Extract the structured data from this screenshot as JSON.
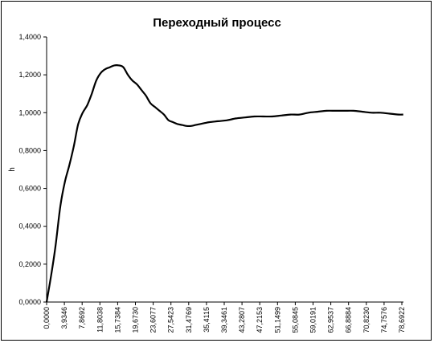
{
  "chart_data": {
    "type": "line",
    "title": "Переходный процесс",
    "xlabel": "",
    "ylabel": "h",
    "ylim": [
      0,
      1.4
    ],
    "y_ticks": [
      "0,0000",
      "0,2000",
      "0,4000",
      "0,6000",
      "0,8000",
      "1,0000",
      "1,2000",
      "1,4000"
    ],
    "y_tick_values": [
      0,
      0.2,
      0.4,
      0.6,
      0.8,
      1.0,
      1.2,
      1.4
    ],
    "x_ticks": [
      "0,0000",
      "3,9346",
      "7,8692",
      "11,8038",
      "15,7384",
      "19,6730",
      "23,6077",
      "27,5423",
      "31,4769",
      "35,4115",
      "39,3461",
      "43,2807",
      "47,2153",
      "51,1499",
      "55,0845",
      "59,0191",
      "62,9537",
      "66,8884",
      "70,8230",
      "74,7576",
      "78,6922"
    ],
    "x_tick_values": [
      0,
      3.9346,
      7.8692,
      11.8038,
      15.7384,
      19.673,
      23.6077,
      27.5423,
      31.4769,
      35.4115,
      39.3461,
      43.2807,
      47.2153,
      51.1499,
      55.0845,
      59.0191,
      62.9537,
      66.8884,
      70.823,
      74.7576,
      78.6922
    ],
    "xlim": [
      0,
      78.6922
    ],
    "grid": false,
    "legend": "none",
    "series": [
      {
        "color": "#000000",
        "x": [
          0,
          1,
          2,
          3,
          4,
          5,
          6,
          7,
          8,
          9,
          10,
          11,
          12,
          13,
          14,
          15,
          16,
          17,
          18,
          19,
          20,
          21,
          22,
          23,
          24,
          25,
          26,
          27,
          28,
          29,
          30,
          31,
          32,
          33,
          34,
          35,
          36,
          38,
          40,
          42,
          44,
          46,
          48,
          50,
          52,
          54,
          56,
          58,
          60,
          62,
          64,
          66,
          68,
          70,
          72,
          74,
          76,
          78,
          79
        ],
        "y": [
          0.0,
          0.14,
          0.3,
          0.5,
          0.63,
          0.72,
          0.82,
          0.94,
          1.0,
          1.04,
          1.1,
          1.17,
          1.21,
          1.23,
          1.24,
          1.25,
          1.25,
          1.24,
          1.2,
          1.17,
          1.15,
          1.12,
          1.09,
          1.05,
          1.03,
          1.01,
          0.99,
          0.96,
          0.95,
          0.94,
          0.935,
          0.93,
          0.93,
          0.935,
          0.94,
          0.945,
          0.95,
          0.955,
          0.96,
          0.97,
          0.975,
          0.98,
          0.98,
          0.98,
          0.985,
          0.99,
          0.99,
          1.0,
          1.005,
          1.01,
          1.01,
          1.01,
          1.01,
          1.005,
          1.0,
          1.0,
          0.995,
          0.99,
          0.99
        ]
      }
    ]
  }
}
